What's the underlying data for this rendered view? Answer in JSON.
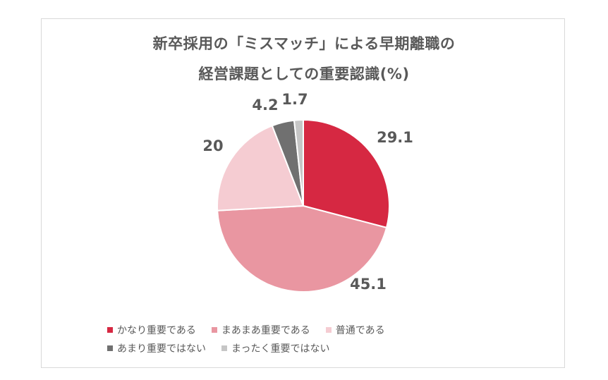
{
  "chart_data": {
    "type": "pie",
    "title_line1": "新卒採用の「ミスマッチ」による早期離職の",
    "title_line2": "経営課題としての重要認識(%)",
    "categories": [
      "かなり重要である",
      "まあまあ重要である",
      "普通である",
      "あまり重要ではない",
      "まったく重要ではない"
    ],
    "values": [
      29.1,
      45.1,
      20,
      4.2,
      1.7
    ],
    "value_labels": [
      "29.1",
      "45.1",
      "20",
      "4.2",
      "1.7"
    ],
    "colors": [
      "#d62842",
      "#e996a1",
      "#f5ccd2",
      "#707070",
      "#c6c6c6"
    ],
    "legend": "bottom",
    "legend_rows": [
      [
        0,
        1,
        2
      ],
      [
        3,
        4
      ]
    ]
  }
}
